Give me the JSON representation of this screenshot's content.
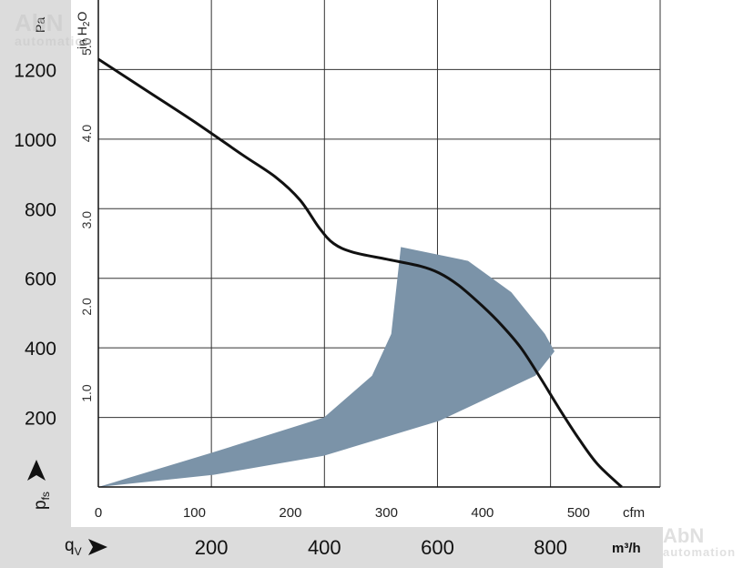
{
  "chart_data": {
    "type": "line",
    "title": "",
    "xlabel": "qV",
    "ylabel": "pfs",
    "x_primary_unit": "cfm",
    "x_primary_ticks": [
      "0",
      "100",
      "200",
      "300",
      "400",
      "500"
    ],
    "x_primary_lim": [
      0,
      585
    ],
    "x_secondary_unit": "m³/h",
    "x_secondary_ticks": [
      "200",
      "400",
      "600",
      "800"
    ],
    "y_primary_unit": "Pa",
    "y_primary_ticks": [
      "200",
      "400",
      "600",
      "800",
      "1000",
      "1200"
    ],
    "y_primary_lim": [
      0,
      1400
    ],
    "y_secondary_unit": "in H2O",
    "y_secondary_ticks": [
      "1.0",
      "2.0",
      "3.0",
      "4.0",
      "5.0"
    ],
    "grid": true,
    "series": [
      {
        "type": "line",
        "color": "#111111",
        "x": [
          0,
          50,
          100,
          150,
          185,
          210,
          230,
          245,
          265,
          300,
          335,
          355,
          375,
          400,
          420,
          440,
          460,
          480,
          500,
          520,
          545
        ],
        "y": [
          1230,
          1140,
          1050,
          955,
          890,
          825,
          745,
          700,
          675,
          655,
          635,
          615,
          580,
          520,
          465,
          400,
          315,
          225,
          140,
          65,
          0
        ]
      },
      {
        "type": "area",
        "color": "#7b93a8",
        "outline_x": [
          0,
          120,
          235,
          285,
          305,
          315,
          385,
          430,
          465,
          475,
          455,
          355,
          235,
          120,
          0
        ],
        "outline_y": [
          0,
          100,
          200,
          320,
          440,
          690,
          650,
          560,
          440,
          390,
          320,
          190,
          90,
          35,
          0
        ]
      }
    ]
  },
  "labels": {
    "pa_unit": "Pa",
    "inh2o_unit": "in H",
    "inh2o_sub": "2",
    "inh2o_tail": "O",
    "cfm_unit": "cfm",
    "m3h_unit": "m³/h",
    "qv_main": "q",
    "qv_sub": "V",
    "pfs_main": "p",
    "pfs_sub": "fs"
  },
  "watermark": {
    "brand": "AbN",
    "sub": "automation"
  }
}
